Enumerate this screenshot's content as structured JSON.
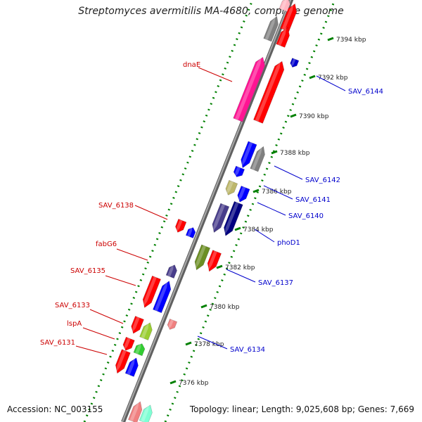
{
  "title": "Streptomyces avermitilis MA-4680, complete genome",
  "footer": {
    "accession": "Accession: NC_003155",
    "summary": "Topology: linear; Length: 9,025,608 bp; Genes: 7,669"
  },
  "colors": {
    "backbone": "#808080",
    "tick": "#008000",
    "label_forward": "#cc0000",
    "label_reverse": "#0000cc",
    "text": "#222222"
  },
  "scale_ticks": [
    {
      "label": "7394 kbp"
    },
    {
      "label": "7392 kbp"
    },
    {
      "label": "7390 kbp"
    },
    {
      "label": "7388 kbp"
    },
    {
      "label": "7386 kbp"
    },
    {
      "label": "7384 kbp"
    },
    {
      "label": "7382 kbp"
    },
    {
      "label": "7380 kbp"
    },
    {
      "label": "7378 kbp"
    },
    {
      "label": "7376 kbp"
    }
  ],
  "labels_left": [
    {
      "name": "dnaE"
    },
    {
      "name": "SAV_6138"
    },
    {
      "name": "fabG6"
    },
    {
      "name": "SAV_6135"
    },
    {
      "name": "SAV_6133"
    },
    {
      "name": "lspA"
    },
    {
      "name": "SAV_6131"
    }
  ],
  "labels_right": [
    {
      "name": "SAV_6144"
    },
    {
      "name": "SAV_6142"
    },
    {
      "name": "SAV_6141"
    },
    {
      "name": "SAV_6140"
    },
    {
      "name": "phoD1"
    },
    {
      "name": "SAV_6137"
    },
    {
      "name": "SAV_6134"
    }
  ],
  "gene_colors": [
    "#ff0000",
    "#ff0000",
    "#ff1493",
    "#0000cc",
    "#808080",
    "#0000ff",
    "#0000ff",
    "#bdb76b",
    "#0000ff",
    "#483d8b",
    "#000080",
    "#ff0000",
    "#0000ff",
    "#6b8e23",
    "#ff0000",
    "#483d8b",
    "#ff0000",
    "#0000ff",
    "#f08080",
    "#ff0000",
    "#9acd32",
    "#ff0000",
    "#32cd32",
    "#ff0000",
    "#0000ff",
    "#f08080",
    "#7fffd4",
    "#ffb6c1",
    "#808080",
    "#ff0000"
  ]
}
